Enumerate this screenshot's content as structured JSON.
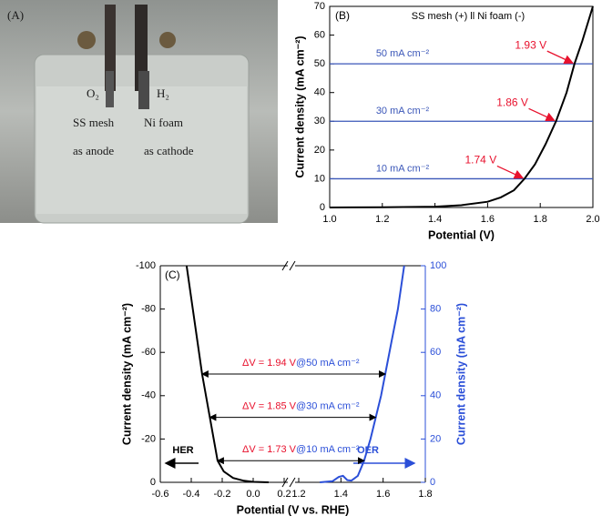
{
  "panel_a": {
    "label": "(A)",
    "texts": [
      "O₂",
      "H₂",
      "SS mesh",
      "Ni foam",
      "as anode",
      "as cathode"
    ]
  },
  "chart_data": [
    {
      "type": "line",
      "panel_label": "(B)",
      "title": "SS mesh (+) ll Ni foam (-)",
      "x_label": "Potential (V)",
      "y_label": "Current density (mA cm⁻²)",
      "xlim": [
        1.0,
        2.0
      ],
      "xticks": [
        {
          "value": 1.0,
          "label": "1.0"
        },
        1.2,
        1.4,
        1.6,
        1.8,
        {
          "value": 2.0,
          "label": "2.0"
        }
      ],
      "ylim": [
        0,
        70
      ],
      "yticks": [
        0,
        10,
        20,
        30,
        40,
        50,
        60,
        70
      ],
      "series": [
        {
          "color": "#000000",
          "x": [
            1.0,
            1.2,
            1.4,
            1.5,
            1.6,
            1.65,
            1.7,
            1.74,
            1.78,
            1.82,
            1.86,
            1.9,
            1.93,
            1.96,
            2.0
          ],
          "values": [
            0,
            0.1,
            0.3,
            0.8,
            2,
            3.5,
            6,
            10,
            15,
            22,
            30,
            40,
            50,
            58,
            70
          ]
        }
      ],
      "reference_lines": [
        {
          "y": 50,
          "label": "50 mA cm⁻²"
        },
        {
          "y": 30,
          "label": "30 mA cm⁻²"
        },
        {
          "y": 10,
          "label": "10 mA cm⁻²"
        }
      ],
      "reference_color": "#3a56b8",
      "annotations": [
        {
          "text": "1.93 V",
          "x": 1.93,
          "y": 50
        },
        {
          "text": "1.86 V",
          "x": 1.86,
          "y": 30
        },
        {
          "text": "1.74 V",
          "x": 1.74,
          "y": 10
        }
      ],
      "annotation_color": "#e8112d"
    },
    {
      "type": "line",
      "panel_label": "(C)",
      "x_label": "Potential (V vs. RHE)",
      "y_label": "Current density (mA cm⁻²)",
      "y2_label": "Current density (mA cm⁻²)",
      "xlim": [
        -0.6,
        0.2
      ],
      "xticks": [
        -0.6,
        -0.4,
        -0.2,
        {
          "value": 0,
          "label": "0.0"
        },
        0.2
      ],
      "x2lim": [
        1.2,
        1.8
      ],
      "x2ticks": [
        1.2,
        1.4,
        1.6,
        1.8
      ],
      "ylim": [
        0,
        -100
      ],
      "yticks": [
        0,
        -20,
        -40,
        -60,
        -80,
        -100
      ],
      "y2lim": [
        0,
        100
      ],
      "y2ticks": [
        0,
        20,
        40,
        60,
        80,
        100
      ],
      "y2_color": "#2b4fd8",
      "series": [
        {
          "name": "HER",
          "color": "#000000",
          "axis": "y",
          "x": [
            -0.43,
            -0.39,
            -0.36,
            -0.33,
            -0.3,
            -0.28,
            -0.25,
            -0.23,
            -0.19,
            -0.13,
            -0.06,
            0,
            0.1
          ],
          "values": [
            -100,
            -80,
            -65,
            -50,
            -38,
            -30,
            -18,
            -10,
            -5,
            -2,
            -0.7,
            -0.2,
            0
          ]
        },
        {
          "name": "OER",
          "color": "#2b4fd8",
          "axis": "y2",
          "x_axis": "x2",
          "x": [
            1.3,
            1.36,
            1.39,
            1.41,
            1.43,
            1.45,
            1.48,
            1.51,
            1.54,
            1.565,
            1.59,
            1.61,
            1.64,
            1.67,
            1.7
          ],
          "values": [
            0,
            0.5,
            2.5,
            3,
            1,
            0.8,
            3,
            10,
            20,
            30,
            40,
            50,
            65,
            80,
            100
          ]
        }
      ],
      "annotations": [
        {
          "delta_text": "ΔV = 1.94 V",
          "at_text": "@50 mA cm⁻²",
          "y": 50,
          "x_left": -0.33,
          "x_right": 1.61
        },
        {
          "delta_text": "ΔV = 1.85 V",
          "at_text": "@30 mA cm⁻²",
          "y": 30,
          "x_left": -0.28,
          "x_right": 1.565
        },
        {
          "delta_text": "ΔV = 1.73 V",
          "at_text": "@10 mA cm⁻²",
          "y": 10,
          "x_left": -0.23,
          "x_right": 1.51
        }
      ],
      "annotation_color": "#e8112d"
    }
  ]
}
